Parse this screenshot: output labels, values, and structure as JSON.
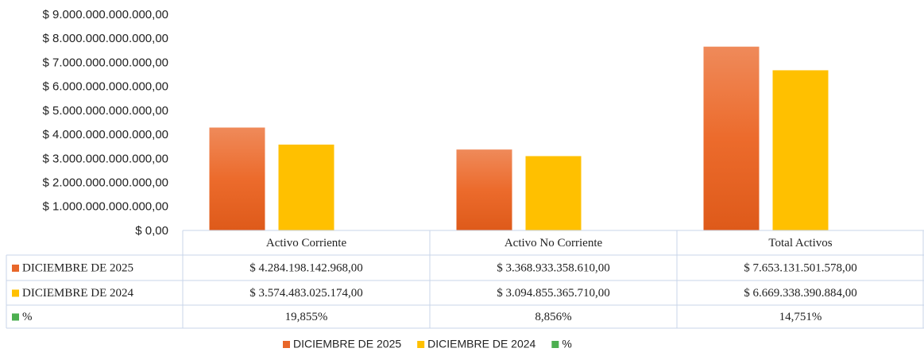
{
  "chart_data": {
    "type": "bar",
    "categories": [
      "Activo Corriente",
      "Activo No Corriente",
      "Total Activos"
    ],
    "series": [
      {
        "name": "DICIEMBRE DE 2025",
        "color": "#e8672a",
        "values": [
          4284198142968,
          3368933358610,
          7653131501578
        ],
        "value_labels": [
          "$ 4.284.198.142.968,00",
          "$ 3.368.933.358.610,00",
          "$ 7.653.131.501.578,00"
        ]
      },
      {
        "name": "DICIEMBRE DE 2024",
        "color": "#ffc000",
        "values": [
          3574483025174,
          3094855365710,
          6669338390884
        ],
        "value_labels": [
          "$ 3.574.483.025.174,00",
          "$ 3.094.855.365.710,00",
          "$ 6.669.338.390.884,00"
        ]
      },
      {
        "name": "%",
        "color": "#4caf50",
        "values": [
          19.855,
          8.856,
          14.751
        ],
        "value_labels": [
          "19,855%",
          "8,856%",
          "14,751%"
        ]
      }
    ],
    "ylim": [
      0,
      9000000000000
    ],
    "yticks": [
      {
        "value": 0,
        "label": "$ 0,00"
      },
      {
        "value": 1000000000000,
        "label": "$ 1.000.000.000.000,00"
      },
      {
        "value": 2000000000000,
        "label": "$ 2.000.000.000.000,00"
      },
      {
        "value": 3000000000000,
        "label": "$ 3.000.000.000.000,00"
      },
      {
        "value": 4000000000000,
        "label": "$ 4.000.000.000.000,00"
      },
      {
        "value": 5000000000000,
        "label": "$ 5.000.000.000.000,00"
      },
      {
        "value": 6000000000000,
        "label": "$ 6.000.000.000.000,00"
      },
      {
        "value": 7000000000000,
        "label": "$ 7.000.000.000.000,00"
      },
      {
        "value": 8000000000000,
        "label": "$ 8.000.000.000.000,00"
      },
      {
        "value": 9000000000000,
        "label": "$ 9.000.000.000.000,00"
      }
    ],
    "grid": false,
    "legend": "bottom"
  }
}
